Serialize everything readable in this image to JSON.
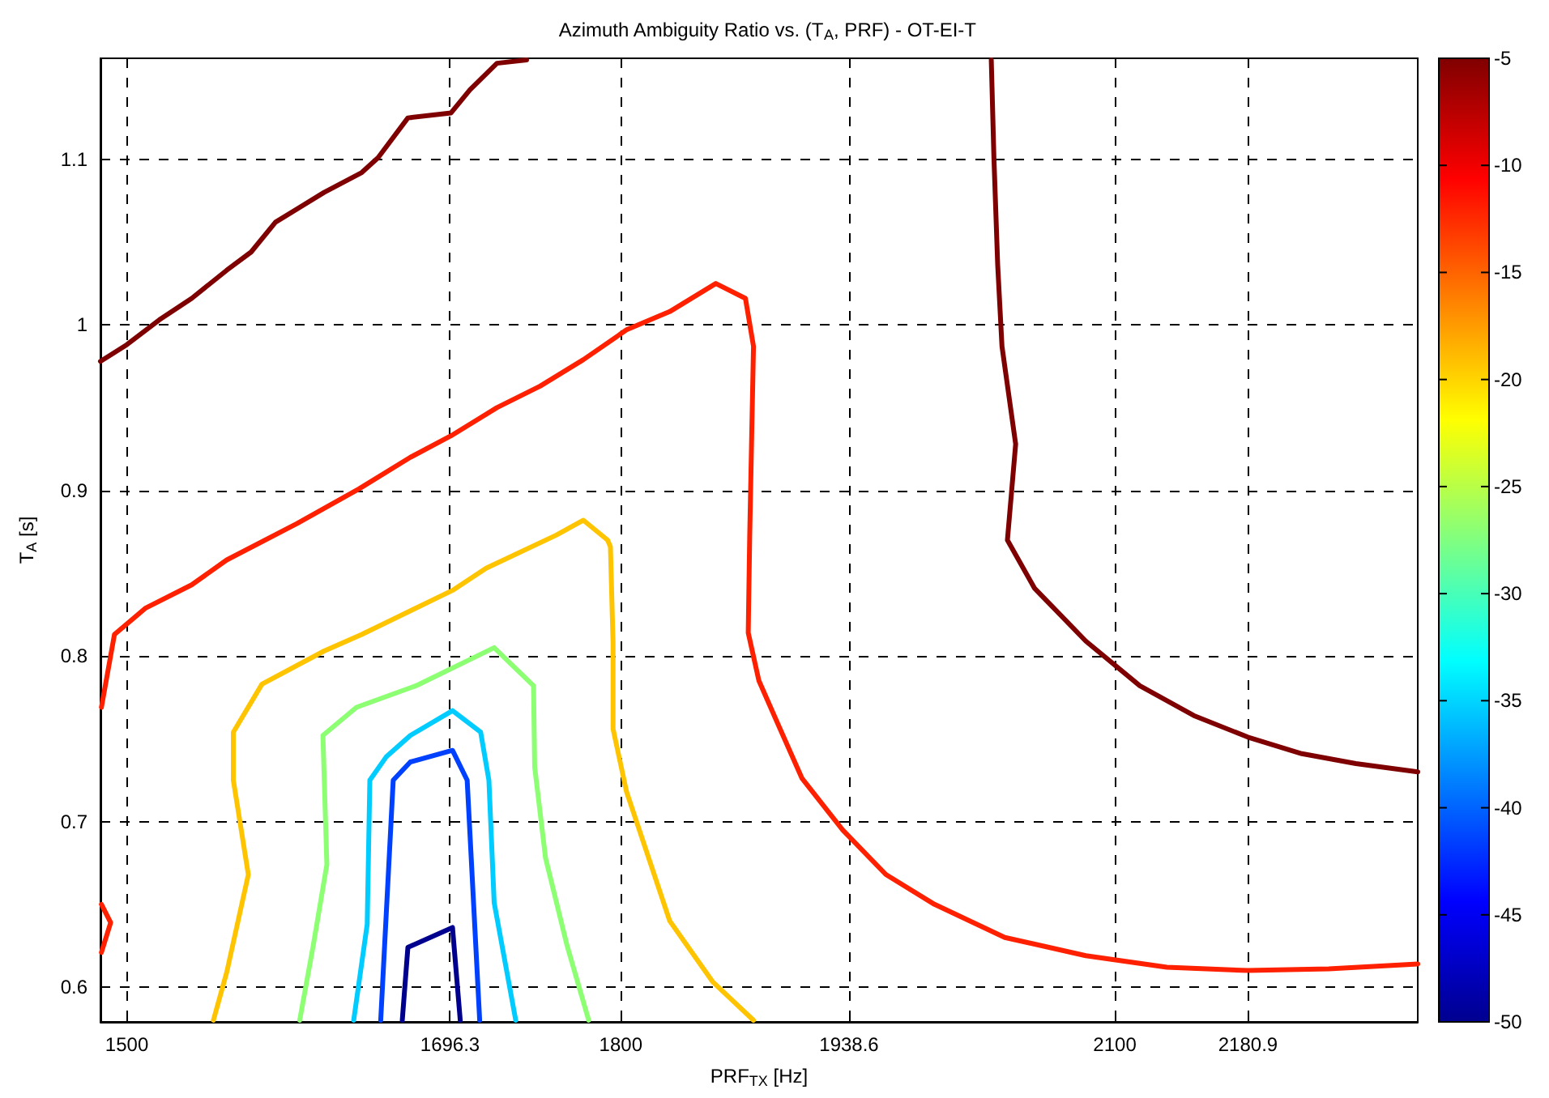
{
  "chart_data": {
    "type": "line",
    "title": "Azimuth Ambiguity Ratio vs. (T$_{A}$, PRF) - OT-EI-T",
    "xlabel": "PRF$_{TX}$ [Hz]",
    "ylabel": "T$_{A}$ [s]",
    "xlim": [
      1484,
      2284
    ],
    "ylim": [
      0.579,
      1.161
    ],
    "xticks": [
      1500,
      1696.3,
      1800,
      1938.6,
      2100,
      2180.9
    ],
    "yticks": [
      0.6,
      0.7,
      0.8,
      0.9,
      1,
      1.1
    ],
    "clim": [
      -50,
      -5
    ],
    "cticks": [
      -50,
      -45,
      -40,
      -35,
      -30,
      -25,
      -20,
      -15,
      -10,
      -5
    ],
    "grid": true,
    "line_style": "solid",
    "marker": "none",
    "series": [
      {
        "color": "#7f0000",
        "x": [
          1484,
          1500,
          1519.7,
          1539.4,
          1560.7,
          1575.5,
          1590.3,
          1619.8,
          1642.7,
          1652.6,
          1670.7,
          1696.9,
          1708.4,
          1724.8,
          1742.8
        ],
        "values": [
          0.978,
          0.988,
          1.003,
          1.016,
          1.033,
          1.044,
          1.062,
          1.08,
          1.092,
          1.101,
          1.125,
          1.128,
          1.142,
          1.158,
          1.16
        ]
      },
      {
        "color": "#7f0000",
        "x": [
          2025,
          2026.6,
          2028.9,
          2031.5,
          2039.8,
          2034.8,
          2051.2,
          2082.4,
          2115.2,
          2148,
          2180.8,
          2213.6,
          2246.4,
          2284
        ],
        "values": [
          1.16,
          1.101,
          1.036,
          0.987,
          0.928,
          0.87,
          0.841,
          0.809,
          0.782,
          0.764,
          0.751,
          0.741,
          0.735,
          0.73
        ]
      },
      {
        "color": "#ff2000",
        "x": [
          1484.6,
          1492.5,
          1511.5,
          1539.4,
          1560.7,
          1603.3,
          1641.1,
          1672.2,
          1696.9,
          1724.8,
          1751,
          1777.3,
          1803.5,
          1829.7,
          1857.7,
          1875.7,
          1880.6,
          1879.6,
          1878.3,
          1877.4,
          1883.9,
          1895.4,
          1910.1,
          1934.7,
          1961,
          1990.5,
          2033.2,
          2082.4,
          2131.6,
          2180.8,
          2230,
          2284
        ],
        "values": [
          0.769,
          0.813,
          0.829,
          0.843,
          0.858,
          0.88,
          0.901,
          0.92,
          0.933,
          0.95,
          0.963,
          0.979,
          0.997,
          1.008,
          1.025,
          1.016,
          0.987,
          0.938,
          0.873,
          0.814,
          0.785,
          0.759,
          0.726,
          0.695,
          0.668,
          0.65,
          0.63,
          0.619,
          0.612,
          0.61,
          0.611,
          0.614
        ]
      },
      {
        "color": "#ff2000",
        "x": [
          1484.6,
          1490.2,
          1484.6
        ],
        "values": [
          0.65,
          0.639,
          0.621
        ]
      },
      {
        "color": "#ffc400",
        "x": [
          1552.6,
          1560.7,
          1573.8,
          1564.7,
          1564.7,
          1582.1,
          1619.8,
          1642.7,
          1698.5,
          1718.2,
          1760.8,
          1777.3,
          1792,
          1793.7,
          1795.3,
          1795.3,
          1803.5,
          1829.7,
          1856,
          1880.6
        ],
        "values": [
          0.58,
          0.609,
          0.668,
          0.725,
          0.754,
          0.783,
          0.803,
          0.813,
          0.84,
          0.853,
          0.873,
          0.882,
          0.87,
          0.866,
          0.808,
          0.756,
          0.718,
          0.64,
          0.603,
          0.58
        ]
      },
      {
        "color": "#8cff73",
        "x": [
          1605,
          1613.2,
          1621.5,
          1619.1,
          1639.5,
          1675.6,
          1723.1,
          1747,
          1747.7,
          1754.3,
          1767.4,
          1780.5
        ],
        "values": [
          0.58,
          0.625,
          0.674,
          0.752,
          0.769,
          0.782,
          0.805,
          0.782,
          0.733,
          0.678,
          0.625,
          0.58
        ]
      },
      {
        "color": "#00ccff",
        "x": [
          1637.8,
          1646,
          1647.6,
          1657.5,
          1672.2,
          1697.8,
          1714.9,
          1719.9,
          1723.1,
          1736.2
        ],
        "values": [
          0.58,
          0.638,
          0.725,
          0.739,
          0.752,
          0.767,
          0.754,
          0.725,
          0.651,
          0.58
        ]
      },
      {
        "color": "#0040ff",
        "x": [
          1654.2,
          1661.8,
          1672.2,
          1697.8,
          1706.7,
          1714.3
        ],
        "values": [
          0.58,
          0.725,
          0.736,
          0.743,
          0.725,
          0.58
        ]
      },
      {
        "color": "#00008f",
        "x": [
          1667.3,
          1670.7,
          1697.8,
          1702.5
        ],
        "values": [
          0.58,
          0.624,
          0.636,
          0.58
        ]
      }
    ]
  }
}
